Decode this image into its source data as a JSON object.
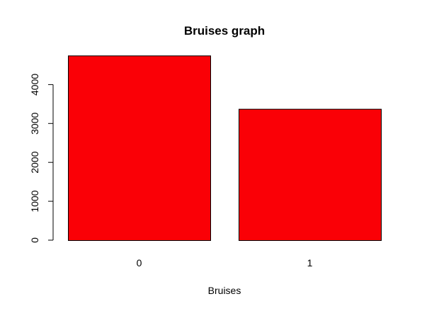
{
  "chart_data": {
    "type": "bar",
    "title": "Bruises graph",
    "xlabel": "Bruises",
    "ylabel": "",
    "categories": [
      "0",
      "1"
    ],
    "values": [
      4748,
      3376
    ],
    "ylim": [
      0,
      4800
    ],
    "yticks": [
      0,
      1000,
      2000,
      3000,
      4000
    ],
    "bar_color": "#fa0006",
    "grid": false,
    "legend": "none"
  }
}
